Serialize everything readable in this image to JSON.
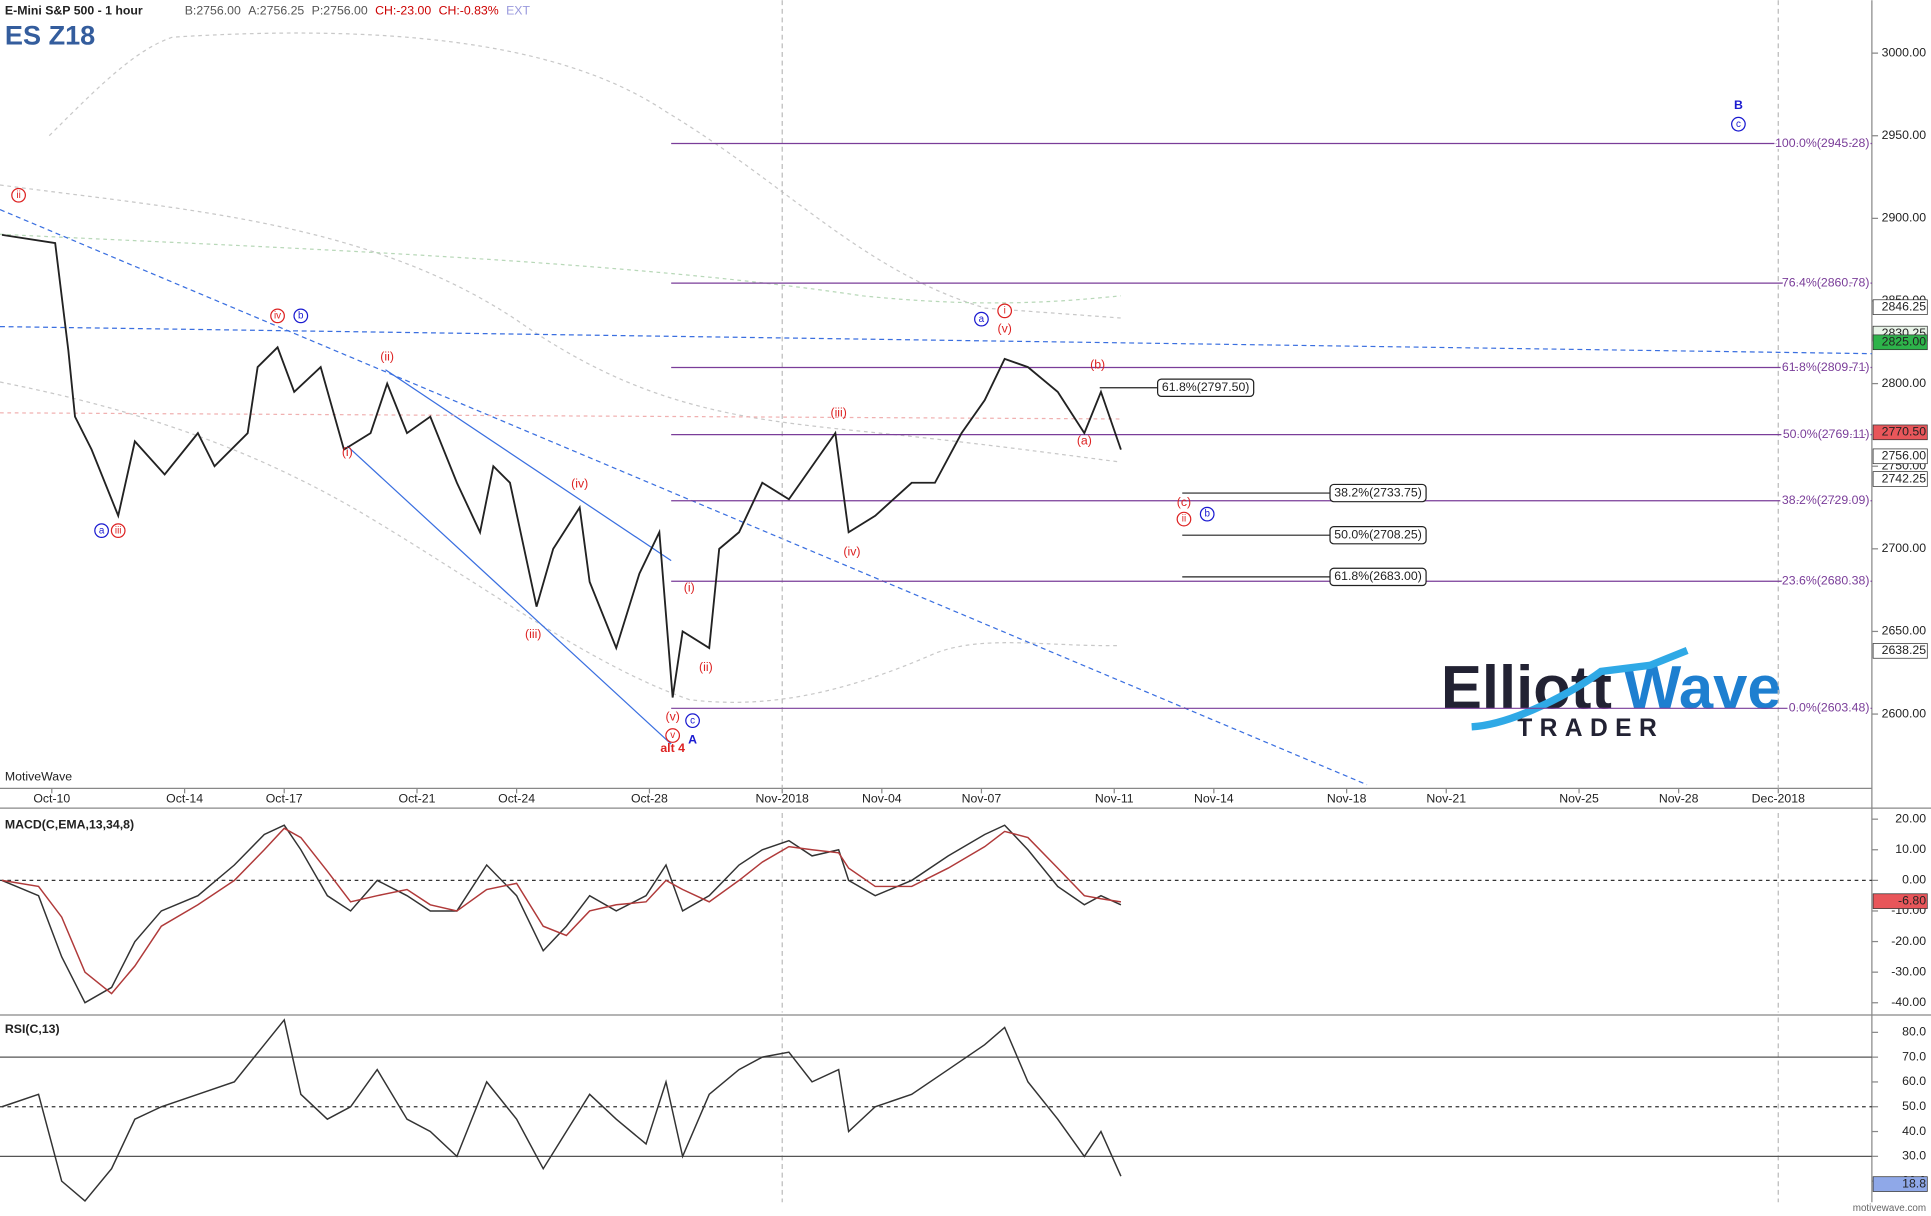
{
  "chart_data": [
    {
      "type": "line",
      "title": "E-Mini S&P 500 - 1 hour",
      "symbol": "ES Z18",
      "platform": "MotiveWave",
      "quote": [
        {
          "text": "B:2756.00",
          "color": "#555555"
        },
        {
          "text": "A:2756.25",
          "color": "#555555"
        },
        {
          "text": "P:2756.00",
          "color": "#555555"
        },
        {
          "text": "CH:-23.00",
          "color": "#cc0000"
        },
        {
          "text": "CH:-0.83%",
          "color": "#cc0000"
        },
        {
          "text": "EXT",
          "color": "#9999dd"
        }
      ],
      "xlim": [
        -1.56,
        54.82
      ],
      "ylim": [
        2555,
        3032
      ],
      "xticks": [
        {
          "value": 0,
          "label": "Oct-10"
        },
        {
          "value": 4,
          "label": "Oct-14"
        },
        {
          "value": 7,
          "label": "Oct-17"
        },
        {
          "value": 11,
          "label": "Oct-21"
        },
        {
          "value": 14,
          "label": "Oct-24"
        },
        {
          "value": 18,
          "label": "Oct-28"
        },
        {
          "value": 22,
          "label": "Nov-2018",
          "grid": true
        },
        {
          "value": 25,
          "label": "Nov-04"
        },
        {
          "value": 28,
          "label": "Nov-07"
        },
        {
          "value": 32,
          "label": "Nov-11"
        },
        {
          "value": 35,
          "label": "Nov-14"
        },
        {
          "value": 39,
          "label": "Nov-18"
        },
        {
          "value": 42,
          "label": "Nov-21"
        },
        {
          "value": 46,
          "label": "Nov-25"
        },
        {
          "value": 49,
          "label": "Nov-28"
        },
        {
          "value": 52,
          "label": "Dec-2018",
          "grid": true
        }
      ],
      "yticks": [
        {
          "value": 2600,
          "label": "2600.00"
        },
        {
          "value": 2650,
          "label": "2650.00"
        },
        {
          "value": 2700,
          "label": "2700.00"
        },
        {
          "value": 2750,
          "label": "2750.00"
        },
        {
          "value": 2800,
          "label": "2800.00"
        },
        {
          "value": 2850,
          "label": "2850.00"
        },
        {
          "value": 2900,
          "label": "2900.00"
        },
        {
          "value": 2950,
          "label": "2950.00"
        },
        {
          "value": 3000,
          "label": "3000.00"
        }
      ],
      "x": [
        -1.5,
        0.1,
        0.5,
        0.7,
        1.2,
        2.0,
        2.5,
        3.4,
        4.4,
        4.9,
        5.9,
        6.2,
        6.8,
        7.3,
        8.1,
        8.8,
        9.6,
        10.1,
        10.7,
        11.4,
        12.2,
        12.9,
        13.3,
        13.8,
        14.6,
        15.1,
        15.9,
        16.2,
        17.0,
        17.7,
        18.3,
        18.7,
        19.0,
        19.8,
        20.1,
        20.7,
        21.4,
        22.2,
        22.9,
        23.6,
        24.0,
        24.8,
        25.9,
        26.6,
        27.4,
        28.1,
        28.7,
        29.4,
        30.3,
        31.1,
        31.6,
        32.2
      ],
      "series": [
        {
          "color": "#222222",
          "values": [
            2890,
            2885,
            2820,
            2780,
            2760,
            2720,
            2765,
            2745,
            2770,
            2750,
            2770,
            2810,
            2822,
            2795,
            2810,
            2760,
            2770,
            2800,
            2770,
            2780,
            2740,
            2710,
            2750,
            2740,
            2665,
            2700,
            2725,
            2680,
            2640,
            2685,
            2710,
            2610,
            2650,
            2640,
            2700,
            2710,
            2740,
            2730,
            2750,
            2770,
            2710,
            2720,
            2740,
            2740,
            2770,
            2790,
            2815,
            2810,
            2795,
            2770,
            2795,
            2760
          ]
        }
      ],
      "levels": [
        {
          "value": 2945.28,
          "label": "100.0%(2945.28)"
        },
        {
          "value": 2860.78,
          "label": "76.4%(2860.78)"
        },
        {
          "value": 2809.71,
          "label": "61.8%(2809.71)"
        },
        {
          "value": 2769.11,
          "label": "50.0%(2769.11)"
        },
        {
          "value": 2729.09,
          "label": "38.2%(2729.09)"
        },
        {
          "value": 2680.38,
          "label": "23.6%(2680.38)"
        },
        {
          "value": 2603.48,
          "label": "0.0%(2603.48)"
        }
      ],
      "level_color": "#7a3d99",
      "projections": [
        {
          "value": 2797.5,
          "label": "61.8%(2797.50)"
        },
        {
          "value": 2733.75,
          "label": "38.2%(2733.75)"
        },
        {
          "value": 2708.25,
          "label": "50.0%(2708.25)"
        },
        {
          "value": 2683.0,
          "label": "61.8%(2683.00)"
        }
      ],
      "price_markers": [
        {
          "value": 2846.25,
          "label": "2846.25",
          "color": "#ffffff"
        },
        {
          "value": 2830.25,
          "label": "2830.25",
          "color": "#e8f4e8"
        },
        {
          "value": 2825.0,
          "label": "2825.00",
          "color": "#2db34a"
        },
        {
          "value": 2770.5,
          "label": "2770.50",
          "color": "#e8565a"
        },
        {
          "value": 2756.0,
          "label": "2756.00",
          "color": "#ffffff"
        },
        {
          "value": 2742.25,
          "label": "2742.25",
          "color": "#ffffff"
        },
        {
          "value": 2638.25,
          "label": "2638.25",
          "color": "#ffffff"
        }
      ],
      "annotations": [
        {
          "text": "ii",
          "x": -1.0,
          "y": 2914,
          "color": "#dd2222",
          "circled": true
        },
        {
          "text": "a",
          "x": 1.5,
          "y": 2711,
          "color": "#1a1ad0",
          "circled": true
        },
        {
          "text": "iii",
          "x": 2.0,
          "y": 2711,
          "color": "#dd2222",
          "circled": true
        },
        {
          "text": "iv",
          "x": 6.8,
          "y": 2841,
          "color": "#dd2222",
          "circled": true
        },
        {
          "text": "b",
          "x": 7.5,
          "y": 2841,
          "color": "#1a1ad0",
          "circled": true
        },
        {
          "text": "(ii)",
          "x": 10.1,
          "y": 2816,
          "color": "#dd2222"
        },
        {
          "text": "(i)",
          "x": 8.9,
          "y": 2758,
          "color": "#dd2222"
        },
        {
          "text": "(iv)",
          "x": 15.9,
          "y": 2739,
          "color": "#dd2222"
        },
        {
          "text": "(iii)",
          "x": 14.5,
          "y": 2648,
          "color": "#dd2222"
        },
        {
          "text": "(i)",
          "x": 19.2,
          "y": 2676,
          "color": "#dd2222"
        },
        {
          "text": "(ii)",
          "x": 19.7,
          "y": 2628,
          "color": "#dd2222"
        },
        {
          "text": "(v)",
          "x": 18.7,
          "y": 2598,
          "color": "#dd2222"
        },
        {
          "text": "v",
          "x": 18.7,
          "y": 2587,
          "color": "#dd2222",
          "circled": true
        },
        {
          "text": "c",
          "x": 19.3,
          "y": 2596,
          "color": "#1a1ad0",
          "circled": true
        },
        {
          "text": "A",
          "x": 19.3,
          "y": 2584,
          "color": "#1a1ad0",
          "bold": true
        },
        {
          "text": "alt 4",
          "x": 18.7,
          "y": 2579,
          "color": "#dd2222",
          "bold": true
        },
        {
          "text": "(iii)",
          "x": 23.7,
          "y": 2782,
          "color": "#dd2222"
        },
        {
          "text": "(iv)",
          "x": 24.1,
          "y": 2698,
          "color": "#dd2222"
        },
        {
          "text": "a",
          "x": 28.0,
          "y": 2839,
          "color": "#1a1ad0",
          "circled": true
        },
        {
          "text": "i",
          "x": 28.7,
          "y": 2844,
          "color": "#dd2222",
          "circled": true
        },
        {
          "text": "(v)",
          "x": 28.7,
          "y": 2833,
          "color": "#dd2222"
        },
        {
          "text": "(b)",
          "x": 31.5,
          "y": 2811,
          "color": "#dd2222"
        },
        {
          "text": "(a)",
          "x": 31.1,
          "y": 2765,
          "color": "#dd2222"
        },
        {
          "text": "(c)",
          "x": 34.1,
          "y": 2728,
          "color": "#dd2222"
        },
        {
          "text": "ii",
          "x": 34.1,
          "y": 2718,
          "color": "#dd2222",
          "circled": true
        },
        {
          "text": "b",
          "x": 34.8,
          "y": 2721,
          "color": "#1a1ad0",
          "circled": true
        },
        {
          "text": "B",
          "x": 50.8,
          "y": 2968,
          "color": "#1a1ad0",
          "bold": true
        },
        {
          "text": "c",
          "x": 50.8,
          "y": 2957,
          "color": "#1a1ad0",
          "circled": true
        }
      ]
    },
    {
      "type": "line",
      "title": "MACD(C,EMA,13,34,8)",
      "xlim": [
        -1.56,
        54.82
      ],
      "ylim": [
        -43.2,
        22.0
      ],
      "yticks": [
        {
          "value": 20,
          "label": "20.00"
        },
        {
          "value": 10,
          "label": "10.00"
        },
        {
          "value": 0,
          "label": "0.00"
        },
        {
          "value": -10,
          "label": "-10.00"
        },
        {
          "value": -20,
          "label": "-20.00"
        },
        {
          "value": -30,
          "label": "-30.00"
        },
        {
          "value": -40,
          "label": "-40.00"
        }
      ],
      "dashed_hlines": [
        0
      ],
      "x": [
        -1.5,
        -0.4,
        0.3,
        1.0,
        1.8,
        2.5,
        3.3,
        4.4,
        5.5,
        6.4,
        7.0,
        7.5,
        8.3,
        9.0,
        9.8,
        10.7,
        11.4,
        12.2,
        13.1,
        14.0,
        14.8,
        15.5,
        16.2,
        17.0,
        17.9,
        18.5,
        19.0,
        19.8,
        20.7,
        21.4,
        22.2,
        22.9,
        23.7,
        24.0,
        24.8,
        25.9,
        27.0,
        28.1,
        28.7,
        29.4,
        30.3,
        31.1,
        31.6,
        32.2
      ],
      "series": [
        {
          "color": "#333333",
          "values": [
            0,
            -5,
            -25,
            -40,
            -35,
            -20,
            -10,
            -5,
            5,
            15,
            18,
            10,
            -5,
            -10,
            0,
            -5,
            -10,
            -10,
            5,
            -5,
            -23,
            -15,
            -5,
            -10,
            -5,
            5,
            -10,
            -5,
            5,
            10,
            13,
            8,
            10,
            0,
            -5,
            0,
            8,
            15,
            18,
            10,
            -2,
            -8,
            -5,
            -8
          ]
        },
        {
          "color": "#b03a3a",
          "values": [
            0,
            -2,
            -12,
            -30,
            -37,
            -28,
            -15,
            -8,
            0,
            10,
            17,
            14,
            3,
            -7,
            -5,
            -3,
            -8,
            -10,
            -3,
            -1,
            -15,
            -18,
            -10,
            -8,
            -7,
            0,
            -3,
            -7,
            0,
            6,
            11,
            10,
            9,
            4,
            -2,
            -2,
            4,
            11,
            16,
            14,
            4,
            -5,
            -6,
            -7
          ]
        }
      ],
      "price_markers": [
        {
          "value": -6.8,
          "label": "-6.80",
          "color": "#e8565a"
        }
      ]
    },
    {
      "type": "line",
      "title": "RSI(C,13)",
      "xlim": [
        -1.56,
        54.82
      ],
      "ylim": [
        11.5,
        86
      ],
      "yticks": [
        {
          "value": 80,
          "label": "80.0"
        },
        {
          "value": 70,
          "label": "70.0"
        },
        {
          "value": 60,
          "label": "60.0"
        },
        {
          "value": 50,
          "label": "50.0"
        },
        {
          "value": 40,
          "label": "40.0"
        },
        {
          "value": 30,
          "label": "30.0"
        },
        {
          "value": 20,
          "label": "20.0"
        }
      ],
      "hlines": [
        70,
        30
      ],
      "dashed_hlines": [
        50
      ],
      "x": [
        -1.5,
        -0.4,
        0.3,
        1.0,
        1.8,
        2.5,
        3.3,
        4.4,
        5.5,
        6.4,
        7.0,
        7.5,
        8.3,
        9.0,
        9.8,
        10.7,
        11.4,
        12.2,
        13.1,
        14.0,
        14.8,
        15.5,
        16.2,
        17.0,
        17.9,
        18.5,
        19.0,
        19.8,
        20.7,
        21.4,
        22.2,
        22.9,
        23.7,
        24.0,
        24.8,
        25.9,
        27.0,
        28.1,
        28.7,
        29.4,
        30.3,
        31.1,
        31.6,
        32.2
      ],
      "series": [
        {
          "color": "#333333",
          "values": [
            50,
            55,
            20,
            12,
            25,
            45,
            50,
            55,
            60,
            75,
            85,
            55,
            45,
            50,
            65,
            45,
            40,
            30,
            60,
            45,
            25,
            40,
            55,
            45,
            35,
            60,
            30,
            55,
            65,
            70,
            72,
            60,
            65,
            40,
            50,
            55,
            65,
            75,
            82,
            60,
            45,
            30,
            40,
            22
          ]
        }
      ],
      "price_markers": [
        {
          "value": 18.8,
          "label": "18.8",
          "color": "#8fa8e8"
        }
      ]
    }
  ],
  "watermark": {
    "first": "Elliott",
    "second": "Wave",
    "third": "TRADER"
  },
  "footer": "motivewave.com"
}
